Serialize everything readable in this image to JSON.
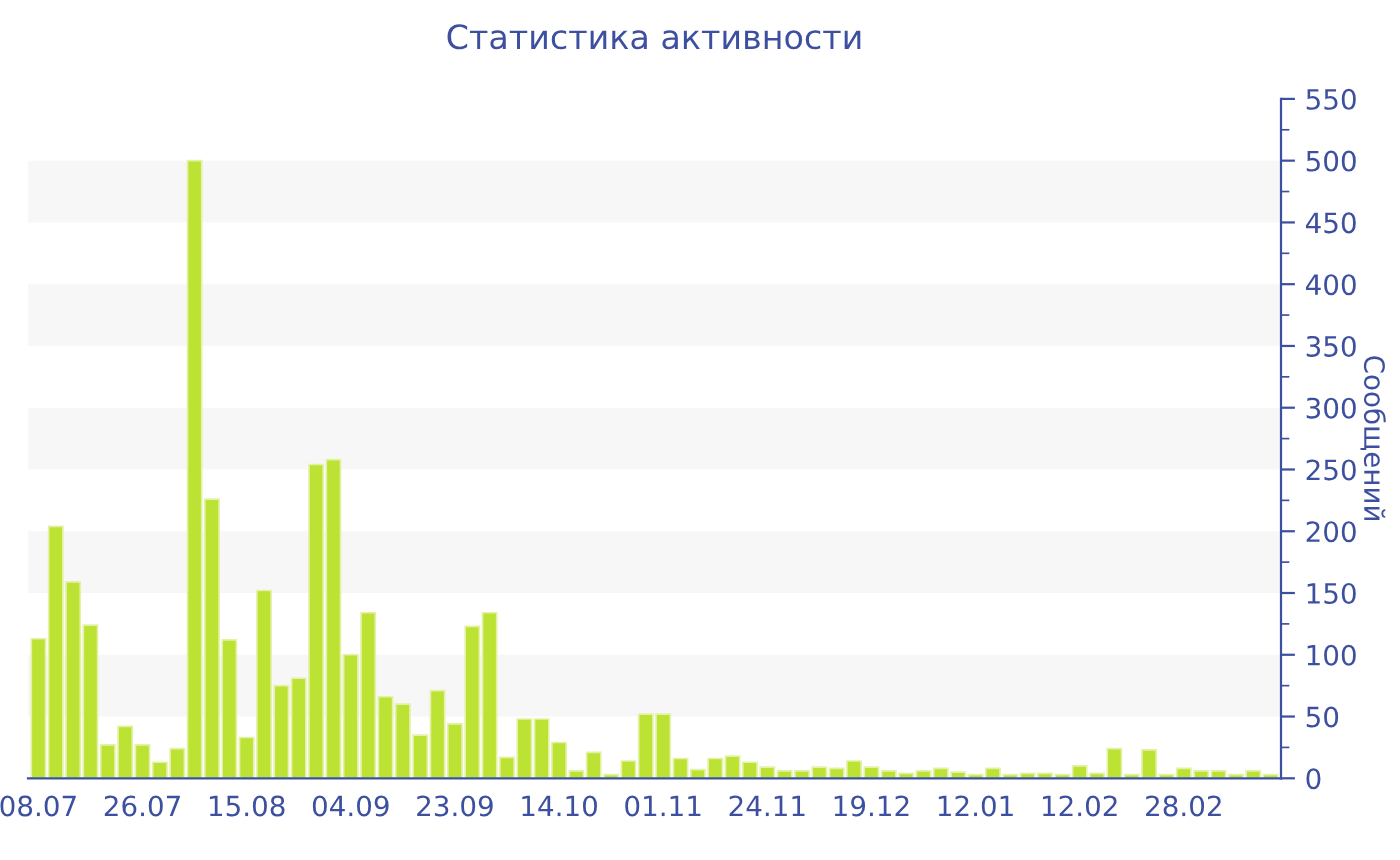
{
  "chart_data": {
    "type": "bar",
    "title": "Статистика активности",
    "ylabel": "Сообщений",
    "categories": [
      "08.07",
      null,
      null,
      null,
      null,
      null,
      "26.07",
      null,
      null,
      null,
      null,
      null,
      "15.08",
      null,
      null,
      null,
      null,
      null,
      "04.09",
      null,
      null,
      null,
      null,
      null,
      "23.09",
      null,
      null,
      null,
      null,
      null,
      "14.10",
      null,
      null,
      null,
      null,
      null,
      "01.11",
      null,
      null,
      null,
      null,
      null,
      "24.11",
      null,
      null,
      null,
      null,
      null,
      "19.12",
      null,
      null,
      null,
      null,
      null,
      "12.01",
      null,
      null,
      null,
      null,
      null,
      "12.02",
      null,
      null,
      null,
      null,
      null,
      "28.02",
      null,
      null,
      null,
      null,
      null
    ],
    "values": [
      113,
      204,
      159,
      124,
      27,
      42,
      27,
      13,
      24,
      500,
      226,
      112,
      33,
      152,
      75,
      81,
      254,
      258,
      100,
      134,
      66,
      60,
      35,
      71,
      44,
      123,
      134,
      17,
      48,
      48,
      29,
      6,
      21,
      3,
      14,
      52,
      52,
      16,
      7,
      16,
      18,
      13,
      9,
      6,
      6,
      9,
      8,
      14,
      9,
      6,
      4,
      6,
      8,
      5,
      3,
      8,
      3,
      4,
      4,
      3,
      10,
      4,
      24,
      3,
      23,
      3,
      8,
      6,
      6,
      3,
      6,
      3
    ],
    "color": "#bce234",
    "ylim": [
      0,
      550
    ],
    "yticks": [
      0,
      50,
      100,
      150,
      200,
      250,
      300,
      350,
      400,
      450,
      500,
      550
    ],
    "bands": [
      {
        "axis": "y",
        "from": 50,
        "to": 100,
        "color": "#f7f7f7"
      },
      {
        "axis": "y",
        "from": 150,
        "to": 200,
        "color": "#f7f7f7"
      },
      {
        "axis": "y",
        "from": 250,
        "to": 300,
        "color": "#f7f7f7"
      },
      {
        "axis": "y",
        "from": 350,
        "to": 400,
        "color": "#f7f7f7"
      },
      {
        "axis": "y",
        "from": 450,
        "to": 500,
        "color": "#f7f7f7"
      }
    ]
  }
}
